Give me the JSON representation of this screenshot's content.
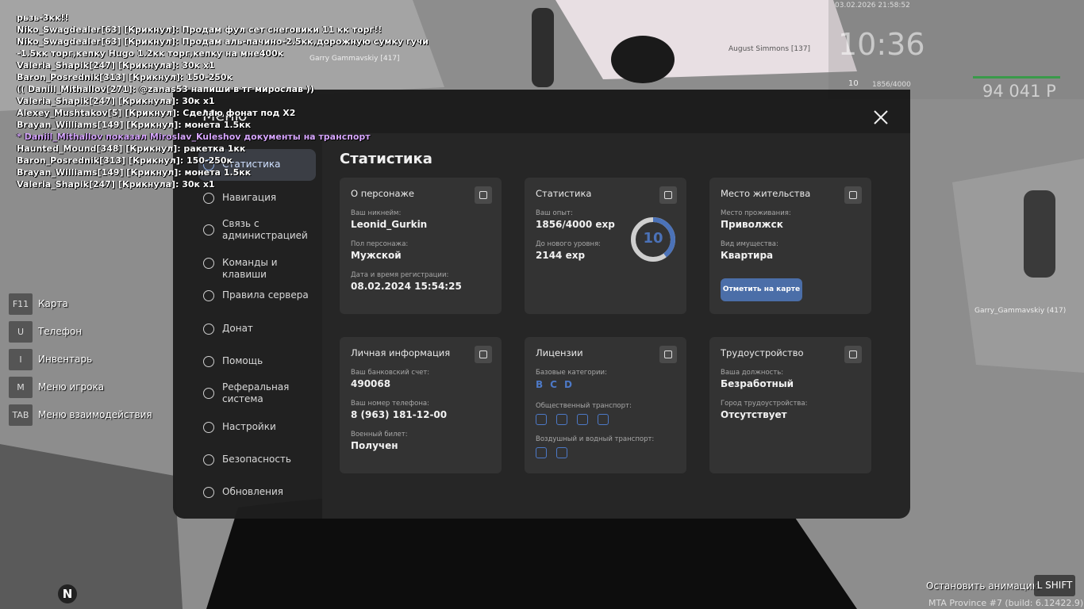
{
  "chat": [
    {
      "text": "рьзь-3кк!!",
      "color": "#ffffff"
    },
    {
      "text": "Niko_Swagdealer[63] [Крикнул]: Продам фул сет снеговики 11 кк торг!!",
      "color": "#ffffff"
    },
    {
      "text": "Niko_Swagdealer[63] [Крикнул]: Продам аль-пачино-2.5кк,дорожную сумку гучи",
      "color": "#ffffff"
    },
    {
      "text": "-1.5кк торг,кепку Hugo 1.2кк торг,кепку на мне400к",
      "color": "#ffffff"
    },
    {
      "text": "Valeria_Shapik[247] [Крикнула]: 30к х1",
      "color": "#ffffff"
    },
    {
      "text": "Baron_Posrednik[313] [Крикнул]: 150-250к",
      "color": "#ffffff"
    },
    {
      "text": "(( Daniil_Mithallov[271]: @zanas53 напиши в тг мирослав ))",
      "color": "#ffffff"
    },
    {
      "text": "Valeria_Shapik[247] [Крикнула]: 30к х1",
      "color": "#ffffff"
    },
    {
      "text": "Alexey_Mushtakov[5] [Крикнул]: Сделаю фонат под Х2",
      "color": "#ffffff"
    },
    {
      "text": "Brayan_Williams[149] [Крикнул]: монета 1.5кк",
      "color": "#ffffff"
    },
    {
      "text": "* Daniil_Mithallov показал Miroslav_Kuleshov документы на транспорт",
      "color": "#d7a6ff"
    },
    {
      "text": "Haunted_Mound[348] [Крикнул]: ракетка 1кк",
      "color": "#ffffff"
    },
    {
      "text": "Baron_Posrednik[313] [Крикнул]: 150-250к",
      "color": "#ffffff"
    },
    {
      "text": "Brayan_Williams[149] [Крикнул]: монета 1.5кк",
      "color": "#ffffff"
    },
    {
      "text": "Valeria_Shapik[247] [Крикнула]: 30к х1",
      "color": "#ffffff"
    }
  ],
  "hud": {
    "datetime": "03.02.2026 21:58:52",
    "time": "10:36",
    "level": "10",
    "exp": "1856/4000",
    "money": "94 041 Р"
  },
  "world_labels": [
    "Garry Gammavskiy [417]",
    "August Simmons [137]",
    "Garry_Gammavskiy (417)"
  ],
  "hotkeys": [
    {
      "key": "F11",
      "label": "Карта"
    },
    {
      "key": "U",
      "label": "Телефон"
    },
    {
      "key": "I",
      "label": "Инвентарь"
    },
    {
      "key": "M",
      "label": "Меню игрока"
    },
    {
      "key": "TAB",
      "label": "Меню взаимодействия"
    }
  ],
  "menu": {
    "title": "Меню",
    "items": [
      "Статистика",
      "Навигация",
      "Связь с\nадминистрацией",
      "Команды и клавиши",
      "Правила сервера",
      "Донат",
      "Помощь",
      "Реферальная\nсистема",
      "Настройки",
      "Безопасность",
      "Обновления"
    ],
    "heading": "Статистика",
    "cards": [
      {
        "title": "О персонаже",
        "fields": [
          {
            "label": "Ваш никнейм:",
            "value": "Leonid_Gurkin"
          },
          {
            "label": "Пол персонажа:",
            "value": "Мужской"
          },
          {
            "label": "Дата и время регистрации:",
            "value": "08.02.2024 15:54:25"
          }
        ]
      },
      {
        "title": "Статистика",
        "level": "10",
        "fields": [
          {
            "label": "Ваш опыт:",
            "value": "1856/4000 exp"
          },
          {
            "label": "До нового уровня:",
            "value": "2144 exp"
          }
        ]
      },
      {
        "title": "Место жительства",
        "button": "Отметить на карте",
        "fields": [
          {
            "label": "Место проживания:",
            "value": "Приволжск"
          },
          {
            "label": "Вид имущества:",
            "value": "Квартира"
          }
        ]
      },
      {
        "title": "Личная информация",
        "fields": [
          {
            "label": "Ваш банковский счет:",
            "value": "490068"
          },
          {
            "label": "Ваш номер телефона:",
            "value": "8 (963) 181-12-00"
          },
          {
            "label": "Военный билет:",
            "value": "Получен"
          }
        ]
      },
      {
        "title": "Лицензии",
        "fields": [
          {
            "label": "Базовые категории:",
            "value": [
              "B",
              "C",
              "D"
            ]
          },
          {
            "label": "Общественный транспорт:"
          },
          {
            "label": "Воздушный и водный транспорт:"
          }
        ]
      },
      {
        "title": "Трудоустройство",
        "fields": [
          {
            "label": "Ваша должность:",
            "value": "Безработный"
          },
          {
            "label": "Город трудоустройства:",
            "value": "Отсутствует"
          }
        ]
      }
    ]
  },
  "footer": {
    "action": "Остановить анимацию",
    "action_key": "L SHIFT",
    "build": "MTA Province #7 (build: 6.12422.9)",
    "compass": "N"
  }
}
